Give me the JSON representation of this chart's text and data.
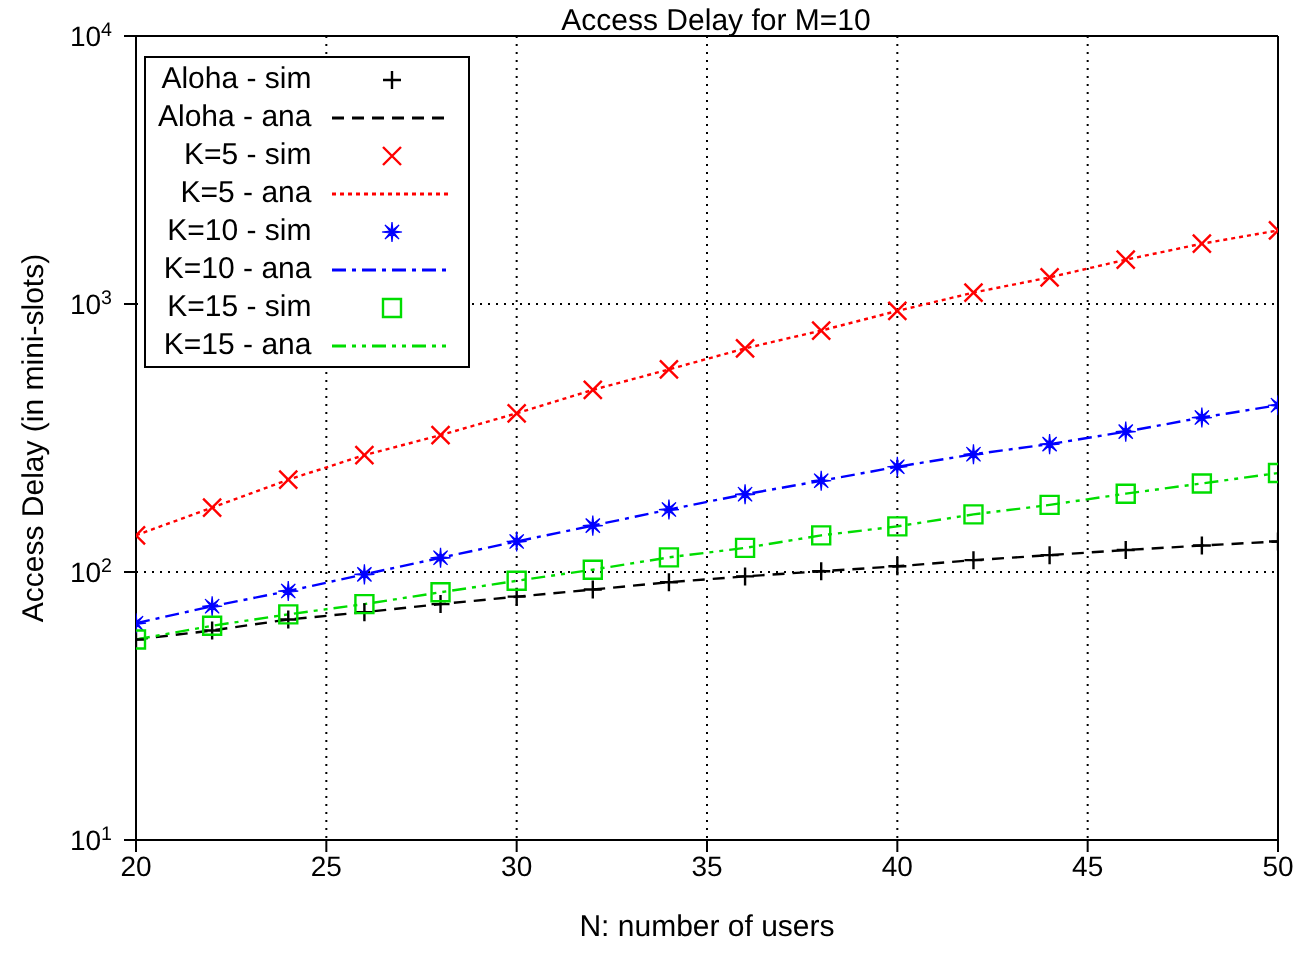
{
  "chart_data": {
    "type": "line",
    "title": "Access Delay for M=10",
    "xlabel": "N: number of users",
    "ylabel": "Access Delay (in mini-slots)",
    "x": [
      20,
      22,
      24,
      26,
      28,
      30,
      32,
      34,
      36,
      38,
      40,
      42,
      44,
      46,
      48,
      50
    ],
    "series": [
      {
        "name": "Aloha - sim",
        "type": "scatter",
        "marker": "plus",
        "color": "#000000",
        "values": [
          56,
          60.5,
          66.5,
          70.8,
          75.9,
          80.9,
          86,
          91.6,
          96.3,
          100.7,
          105,
          110.7,
          115.6,
          120.8,
          125.5,
          130
        ]
      },
      {
        "name": "Aloha - ana",
        "type": "line",
        "line_style": "dashed",
        "color": "#000000",
        "values": [
          56,
          60.5,
          66.5,
          70.8,
          75.9,
          80.9,
          86,
          91.6,
          96.3,
          100.7,
          105,
          110.7,
          115.6,
          120.8,
          125.5,
          130
        ]
      },
      {
        "name": "K=5 - sim",
        "type": "scatter",
        "marker": "cross",
        "color": "#ff0000",
        "values": [
          137,
          174,
          221,
          273,
          324,
          391,
          478,
          570,
          683,
          796,
          942,
          1103,
          1257,
          1463,
          1679,
          1881
        ]
      },
      {
        "name": "K=5 - ana",
        "type": "line",
        "line_style": "dotted",
        "color": "#ff0000",
        "values": [
          137,
          174,
          221,
          273,
          324,
          391,
          478,
          570,
          683,
          796,
          942,
          1103,
          1257,
          1463,
          1679,
          1881
        ]
      },
      {
        "name": "K=10 - sim",
        "type": "scatter",
        "marker": "star",
        "color": "#0000ff",
        "values": [
          64.4,
          74.5,
          84.9,
          98,
          113,
          130,
          149,
          171,
          195,
          219,
          247,
          275,
          300,
          334,
          377,
          419
        ]
      },
      {
        "name": "K=10 - ana",
        "type": "line",
        "line_style": "dashdot",
        "color": "#0000ff",
        "values": [
          64.4,
          74.5,
          84.9,
          98,
          113,
          130,
          149,
          171,
          195,
          219,
          247,
          275,
          300,
          334,
          377,
          419
        ]
      },
      {
        "name": "K=15 - sim",
        "type": "scatter",
        "marker": "square",
        "color": "#00dd00",
        "values": [
          56,
          63,
          69.5,
          75.9,
          84,
          92.7,
          102,
          113.4,
          123,
          137,
          148,
          164,
          178,
          196,
          214,
          234
        ]
      },
      {
        "name": "K=15 - ana",
        "type": "line",
        "line_style": "dashdotdot",
        "color": "#00dd00",
        "values": [
          56,
          63,
          69.5,
          75.9,
          84,
          92.7,
          102,
          113.4,
          123,
          137,
          148,
          164,
          178,
          196,
          214,
          234
        ]
      }
    ],
    "xlim": [
      20,
      50
    ],
    "xticks": [
      20,
      25,
      30,
      35,
      40,
      45,
      50
    ],
    "ylim": [
      10,
      10000
    ],
    "yticks": [
      {
        "value": 10,
        "label": "10$^{1}$"
      },
      {
        "value": 100,
        "label": "10$^{2}$"
      },
      {
        "value": 1000,
        "label": "10$^{3}$"
      },
      {
        "value": 10000,
        "label": "10$^{4}$"
      }
    ],
    "log": "y",
    "grid": true,
    "legend": "top left"
  }
}
